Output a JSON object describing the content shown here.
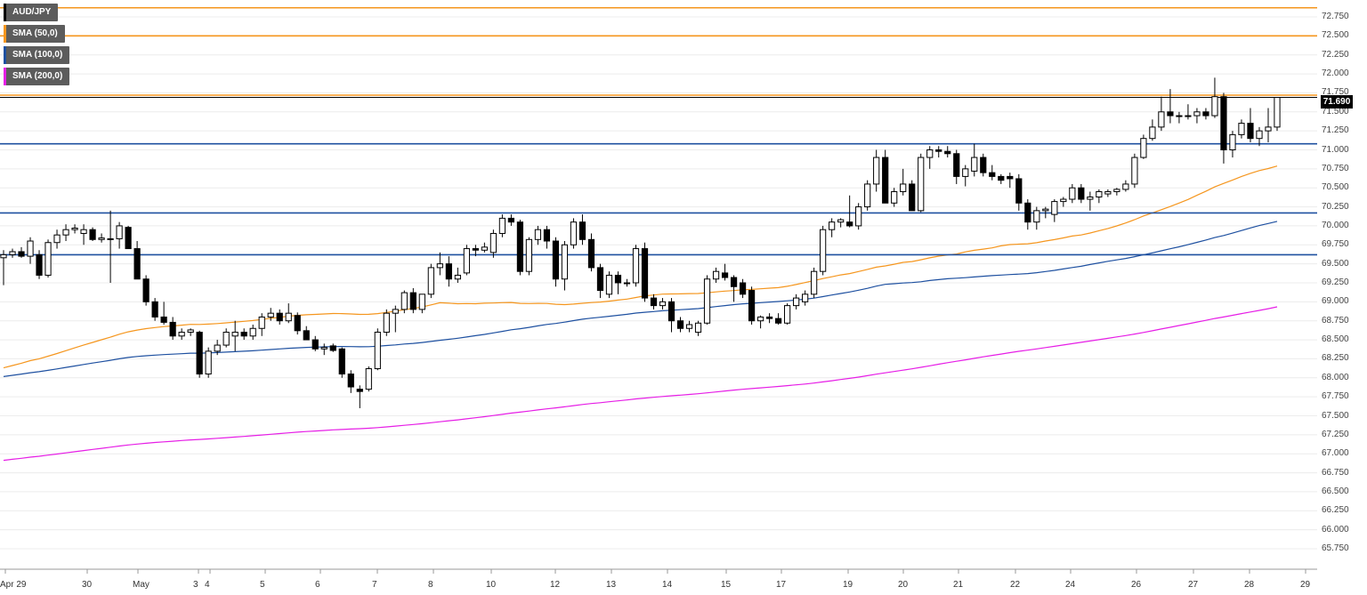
{
  "chart_data": {
    "type": "candlestick",
    "symbol": "AUD/JPY",
    "last_price": "71.690",
    "ylim": [
      65.75,
      72.9
    ],
    "y_ticks": [
      "72.750",
      "72.500",
      "72.250",
      "72.000",
      "71.750",
      "71.500",
      "71.250",
      "71.000",
      "70.750",
      "70.500",
      "70.250",
      "70.000",
      "69.750",
      "69.500",
      "69.250",
      "69.000",
      "68.750",
      "68.500",
      "68.250",
      "68.000",
      "67.750",
      "67.500",
      "67.250",
      "67.000",
      "66.750",
      "66.500",
      "66.250",
      "66.000",
      "65.750"
    ],
    "x_ticks": [
      "Apr 29",
      "30",
      "May",
      "3",
      "4",
      "5",
      "6",
      "7",
      "8",
      "10",
      "12",
      "13",
      "14",
      "15",
      "17",
      "19",
      "20",
      "21",
      "22",
      "24",
      "26",
      "27",
      "28",
      "29"
    ],
    "legend": [
      {
        "label": "AUD/JPY",
        "color": "#000000"
      },
      {
        "label": "SMA (50,0)",
        "color": "#f5961e"
      },
      {
        "label": "SMA (100,0)",
        "color": "#1e50a0"
      },
      {
        "label": "SMA (200,0)",
        "color": "#e61ee6"
      }
    ],
    "resistance_levels": [
      72.87,
      72.5,
      71.72
    ],
    "support_levels": [
      71.08,
      70.17,
      69.62
    ],
    "candles": [
      [
        69.58,
        69.68,
        69.22,
        69.62
      ],
      [
        69.62,
        69.7,
        69.58,
        69.66
      ],
      [
        69.66,
        69.72,
        69.58,
        69.6
      ],
      [
        69.6,
        69.85,
        69.5,
        69.8
      ],
      [
        69.62,
        69.68,
        69.3,
        69.35
      ],
      [
        69.35,
        69.82,
        69.32,
        69.78
      ],
      [
        69.78,
        69.95,
        69.7,
        69.88
      ],
      [
        69.88,
        70.02,
        69.8,
        69.95
      ],
      [
        69.95,
        70.02,
        69.9,
        69.97
      ],
      [
        69.9,
        70.02,
        69.75,
        69.95
      ],
      [
        69.95,
        69.98,
        69.8,
        69.82
      ],
      [
        69.82,
        69.9,
        69.78,
        69.84
      ],
      [
        69.82,
        70.2,
        69.25,
        69.83
      ],
      [
        69.83,
        70.05,
        69.7,
        70.0
      ],
      [
        69.98,
        70.0,
        69.7,
        69.7
      ],
      [
        69.7,
        69.8,
        69.35,
        69.3
      ],
      [
        69.3,
        69.35,
        68.95,
        69.0
      ],
      [
        69.0,
        69.05,
        68.75,
        68.8
      ],
      [
        68.8,
        69.0,
        68.7,
        68.73
      ],
      [
        68.73,
        68.8,
        68.5,
        68.55
      ],
      [
        68.55,
        68.65,
        68.5,
        68.6
      ],
      [
        68.6,
        68.65,
        68.55,
        68.63
      ],
      [
        68.6,
        68.62,
        68.0,
        68.05
      ],
      [
        68.05,
        68.4,
        68.0,
        68.35
      ],
      [
        68.35,
        68.5,
        68.3,
        68.43
      ],
      [
        68.43,
        68.65,
        68.4,
        68.6
      ],
      [
        68.55,
        68.75,
        68.35,
        68.6
      ],
      [
        68.6,
        68.65,
        68.5,
        68.55
      ],
      [
        68.55,
        68.7,
        68.5,
        68.65
      ],
      [
        68.65,
        68.85,
        68.55,
        68.8
      ],
      [
        68.8,
        68.92,
        68.75,
        68.85
      ],
      [
        68.85,
        68.9,
        68.7,
        68.75
      ],
      [
        68.75,
        68.98,
        68.72,
        68.85
      ],
      [
        68.82,
        68.86,
        68.57,
        68.62
      ],
      [
        68.62,
        68.68,
        68.5,
        68.5
      ],
      [
        68.5,
        68.55,
        68.35,
        68.38
      ],
      [
        68.38,
        68.45,
        68.3,
        68.4
      ],
      [
        68.42,
        68.45,
        68.34,
        68.36
      ],
      [
        68.38,
        68.4,
        68.0,
        68.05
      ],
      [
        68.05,
        68.1,
        67.8,
        67.88
      ],
      [
        67.85,
        67.9,
        67.6,
        67.82
      ],
      [
        67.85,
        68.15,
        67.82,
        68.12
      ],
      [
        68.12,
        68.65,
        68.1,
        68.6
      ],
      [
        68.6,
        68.9,
        68.55,
        68.85
      ],
      [
        68.85,
        68.95,
        68.6,
        68.9
      ],
      [
        68.9,
        69.15,
        68.85,
        69.12
      ],
      [
        69.12,
        69.18,
        68.85,
        68.9
      ],
      [
        68.9,
        69.1,
        68.85,
        69.1
      ],
      [
        69.1,
        69.5,
        69.05,
        69.45
      ],
      [
        69.45,
        69.65,
        69.35,
        69.5
      ],
      [
        69.5,
        69.6,
        69.2,
        69.3
      ],
      [
        69.3,
        69.45,
        69.25,
        69.35
      ],
      [
        69.38,
        69.75,
        69.35,
        69.7
      ],
      [
        69.7,
        69.75,
        69.6,
        69.68
      ],
      [
        69.68,
        69.78,
        69.65,
        69.72
      ],
      [
        69.65,
        69.95,
        69.58,
        69.9
      ],
      [
        69.9,
        70.15,
        69.85,
        70.1
      ],
      [
        70.1,
        70.15,
        70.0,
        70.05
      ],
      [
        70.05,
        70.08,
        69.35,
        69.4
      ],
      [
        69.4,
        69.85,
        69.35,
        69.82
      ],
      [
        69.82,
        70.0,
        69.75,
        69.95
      ],
      [
        69.95,
        70.0,
        69.7,
        69.8
      ],
      [
        69.8,
        69.85,
        69.2,
        69.3
      ],
      [
        69.3,
        69.8,
        69.15,
        69.75
      ],
      [
        69.75,
        70.1,
        69.7,
        70.05
      ],
      [
        70.05,
        70.15,
        69.75,
        69.82
      ],
      [
        69.82,
        69.9,
        69.4,
        69.45
      ],
      [
        69.45,
        69.5,
        69.05,
        69.15
      ],
      [
        69.1,
        69.4,
        69.05,
        69.35
      ],
      [
        69.35,
        69.4,
        69.1,
        69.25
      ],
      [
        69.25,
        69.3,
        69.2,
        69.25
      ],
      [
        69.25,
        69.75,
        69.2,
        69.7
      ],
      [
        69.7,
        69.78,
        69.0,
        69.05
      ],
      [
        69.05,
        69.1,
        68.9,
        68.95
      ],
      [
        68.95,
        69.05,
        68.9,
        69.0
      ],
      [
        69.0,
        69.05,
        68.6,
        68.75
      ],
      [
        68.75,
        68.8,
        68.6,
        68.65
      ],
      [
        68.65,
        68.75,
        68.6,
        68.7
      ],
      [
        68.6,
        68.75,
        68.55,
        68.72
      ],
      [
        68.72,
        69.35,
        68.7,
        69.3
      ],
      [
        69.3,
        69.45,
        69.25,
        69.4
      ],
      [
        69.38,
        69.5,
        69.28,
        69.32
      ],
      [
        69.32,
        69.35,
        69.0,
        69.2
      ],
      [
        69.25,
        69.3,
        69.05,
        69.1
      ],
      [
        69.15,
        69.2,
        68.7,
        68.75
      ],
      [
        68.75,
        68.82,
        68.65,
        68.8
      ],
      [
        68.8,
        68.85,
        68.72,
        68.78
      ],
      [
        68.78,
        68.85,
        68.7,
        68.72
      ],
      [
        68.72,
        68.98,
        68.7,
        68.95
      ],
      [
        68.95,
        69.1,
        68.9,
        69.05
      ],
      [
        69.0,
        69.15,
        68.95,
        69.1
      ],
      [
        69.1,
        69.45,
        69.05,
        69.4
      ],
      [
        69.4,
        70.0,
        69.35,
        69.95
      ],
      [
        69.95,
        70.1,
        69.85,
        70.05
      ],
      [
        70.05,
        70.1,
        69.98,
        70.08
      ],
      [
        70.05,
        70.4,
        69.98,
        70.0
      ],
      [
        70.0,
        70.3,
        69.95,
        70.25
      ],
      [
        70.25,
        70.6,
        70.2,
        70.55
      ],
      [
        70.55,
        71.0,
        70.45,
        70.9
      ],
      [
        70.9,
        71.0,
        70.3,
        70.3
      ],
      [
        70.3,
        70.5,
        70.25,
        70.45
      ],
      [
        70.45,
        70.75,
        70.4,
        70.55
      ],
      [
        70.55,
        70.6,
        70.2,
        70.2
      ],
      [
        70.2,
        70.95,
        70.18,
        70.9
      ],
      [
        70.9,
        71.05,
        70.75,
        71.0
      ],
      [
        71.0,
        71.05,
        70.9,
        70.98
      ],
      [
        70.98,
        71.05,
        70.9,
        70.95
      ],
      [
        70.95,
        71.0,
        70.55,
        70.65
      ],
      [
        70.65,
        70.8,
        70.52,
        70.75
      ],
      [
        70.72,
        71.08,
        70.65,
        70.9
      ],
      [
        70.9,
        70.95,
        70.65,
        70.7
      ],
      [
        70.7,
        70.8,
        70.6,
        70.65
      ],
      [
        70.65,
        70.68,
        70.55,
        70.6
      ],
      [
        70.65,
        70.7,
        70.5,
        70.62
      ],
      [
        70.62,
        70.68,
        70.2,
        70.3
      ],
      [
        70.3,
        70.35,
        69.95,
        70.05
      ],
      [
        70.05,
        70.25,
        69.95,
        70.2
      ],
      [
        70.2,
        70.25,
        70.1,
        70.22
      ],
      [
        70.15,
        70.35,
        70.05,
        70.32
      ],
      [
        70.32,
        70.38,
        70.25,
        70.35
      ],
      [
        70.35,
        70.55,
        70.3,
        70.5
      ],
      [
        70.5,
        70.55,
        70.3,
        70.35
      ],
      [
        70.35,
        70.45,
        70.2,
        70.38
      ],
      [
        70.38,
        70.48,
        70.3,
        70.45
      ],
      [
        70.42,
        70.48,
        70.38,
        70.45
      ],
      [
        70.45,
        70.5,
        70.4,
        70.48
      ],
      [
        70.48,
        70.6,
        70.45,
        70.55
      ],
      [
        70.55,
        70.95,
        70.5,
        70.9
      ],
      [
        70.9,
        71.2,
        70.88,
        71.15
      ],
      [
        71.15,
        71.4,
        71.12,
        71.3
      ],
      [
        71.3,
        71.7,
        71.25,
        71.5
      ],
      [
        71.5,
        71.8,
        71.35,
        71.45
      ],
      [
        71.45,
        71.5,
        71.35,
        71.45
      ],
      [
        71.45,
        71.6,
        71.4,
        71.45
      ],
      [
        71.45,
        71.55,
        71.35,
        71.5
      ],
      [
        71.5,
        71.55,
        71.4,
        71.45
      ],
      [
        71.45,
        71.95,
        71.42,
        71.7
      ],
      [
        71.7,
        71.75,
        70.82,
        71.0
      ],
      [
        71.0,
        71.25,
        70.9,
        71.2
      ],
      [
        71.2,
        71.4,
        71.15,
        71.35
      ],
      [
        71.35,
        71.55,
        71.1,
        71.15
      ],
      [
        71.15,
        71.3,
        71.05,
        71.25
      ],
      [
        71.25,
        71.55,
        71.1,
        71.3
      ],
      [
        71.3,
        71.69,
        71.25,
        71.69
      ]
    ]
  }
}
